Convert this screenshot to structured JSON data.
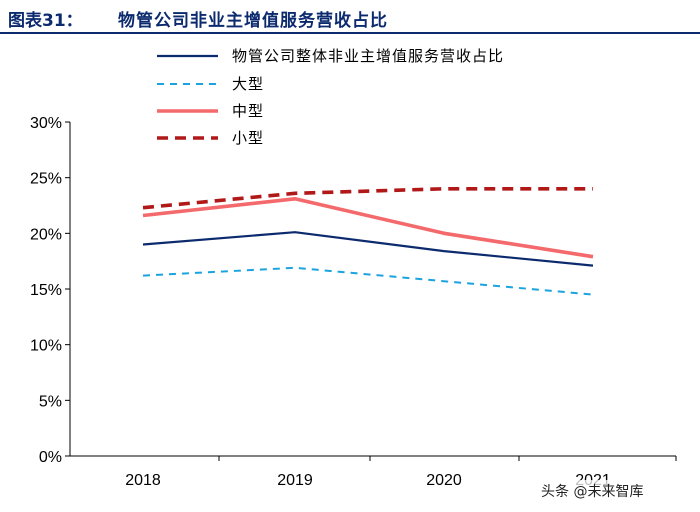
{
  "figure": {
    "label": "图表31：",
    "title": "物管公司非业主增值服务营收占比"
  },
  "chart_data": {
    "type": "line",
    "title": "物管公司非业主增值服务营收占比",
    "categories": [
      "2018",
      "2019",
      "2020",
      "2021"
    ],
    "ylim": [
      0,
      30
    ],
    "yticks": [
      "0%",
      "5%",
      "10%",
      "15%",
      "20%",
      "25%",
      "30%"
    ],
    "ytick_values": [
      0,
      5,
      10,
      15,
      20,
      25,
      30
    ],
    "series": [
      {
        "name": "物管公司整体非业主增值服务营收占比",
        "values": [
          19.0,
          20.1,
          18.4,
          17.1
        ],
        "color": "#0c2a6e",
        "style": "solid"
      },
      {
        "name": "大型",
        "values": [
          16.2,
          16.9,
          15.7,
          14.5
        ],
        "color": "#1ba3e0",
        "style": "dashed"
      },
      {
        "name": "中型",
        "values": [
          21.6,
          23.1,
          20.0,
          17.9
        ],
        "color": "#f4696b",
        "style": "solid"
      },
      {
        "name": "小型",
        "values": [
          22.3,
          23.6,
          24.0,
          24.0
        ],
        "color": "#b11818",
        "style": "dashed"
      }
    ],
    "legend_position": "top"
  },
  "watermark": "头条 @未来智库"
}
